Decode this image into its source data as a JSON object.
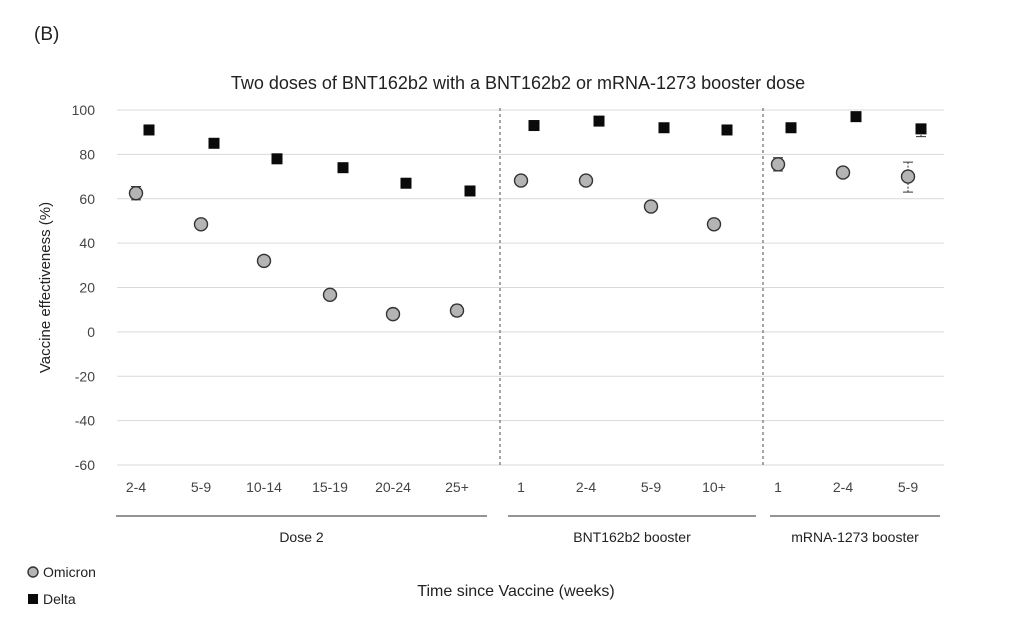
{
  "panel_label": "(B)",
  "colors": {
    "omicron_fill": "#b4b4b4",
    "omicron_stroke": "#333333",
    "delta_fill": "#0a0a0a",
    "grid": "#d9d9d9",
    "divider": "#777777"
  },
  "chart_data": {
    "type": "scatter",
    "title": "Two doses of BNT162b2 with a BNT162b2 or mRNA-1273 booster dose",
    "xlabel": "Time since Vaccine (weeks)",
    "ylabel": "Vaccine effectiveness (%)",
    "ylim": [
      -60,
      100
    ],
    "yticks": [
      100,
      80,
      60,
      40,
      20,
      0,
      -20,
      -40,
      -60
    ],
    "grid": true,
    "legend_position": "bottom-left",
    "categories": [
      "2-4",
      "5-9",
      "10-14",
      "15-19",
      "20-24",
      "25+",
      "1",
      "2-4",
      "5-9",
      "10+",
      "1",
      "2-4",
      "5-9"
    ],
    "groups": [
      {
        "label": "Dose 2",
        "count": 6
      },
      {
        "label": "BNT162b2 booster",
        "count": 4
      },
      {
        "label": "mRNA-1273 booster",
        "count": 3
      }
    ],
    "series": [
      {
        "name": "Omicron",
        "marker": "circle",
        "values": [
          62.5,
          48.5,
          32,
          16.7,
          8,
          9.6,
          68.2,
          68.2,
          56.5,
          48.5,
          75.5,
          71.8,
          70
        ],
        "error_low": [
          59.5,
          46.5,
          30.8,
          15.5,
          6.8,
          7.2,
          67.2,
          67.3,
          55.5,
          47.5,
          72.5,
          70,
          63
        ],
        "error_high": [
          65.5,
          50.5,
          33.2,
          17.9,
          9.2,
          12,
          69.2,
          69.1,
          57.5,
          49.5,
          78.5,
          73.6,
          76.5
        ]
      },
      {
        "name": "Delta",
        "marker": "square",
        "values": [
          91,
          85,
          78,
          74,
          67,
          63.5,
          93,
          95,
          92,
          91,
          92,
          97,
          91.5
        ],
        "error_low": [
          90.5,
          84.5,
          77.5,
          73.5,
          66.5,
          63,
          92.5,
          94.5,
          91.5,
          90.5,
          91.5,
          96.5,
          88
        ],
        "error_high": [
          91.5,
          85.5,
          78.5,
          74.5,
          67.5,
          64,
          93.5,
          95.5,
          92.5,
          91.5,
          92.5,
          97.5,
          93.5
        ]
      }
    ]
  }
}
